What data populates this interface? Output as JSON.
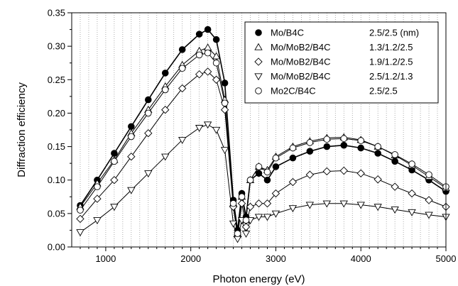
{
  "chart_data": {
    "type": "line",
    "title": "",
    "xlabel": "Photon energy (eV)",
    "ylabel": "Diffraction efficiency",
    "xlim": [
      600,
      5000
    ],
    "ylim": [
      0.0,
      0.35
    ],
    "x_ticks": [
      "1000",
      "2000",
      "3000",
      "4000",
      "5000"
    ],
    "y_ticks": [
      "0.00",
      "0.05",
      "0.10",
      "0.15",
      "0.20",
      "0.25",
      "0.30",
      "0.35"
    ],
    "grid": "vertical dotted at every 100 eV",
    "legend_position": "top-right",
    "series": [
      {
        "name": "Mo/B4C",
        "params": "2.5/2.5 (nm)",
        "marker": "filled-circle",
        "x": [
          700,
          900,
          1100,
          1300,
          1500,
          1700,
          1900,
          2100,
          2200,
          2300,
          2400,
          2500,
          2550,
          2600,
          2650,
          2700,
          2800,
          2900,
          3000,
          3200,
          3400,
          3600,
          3800,
          4000,
          4200,
          4400,
          4600,
          4800,
          5000
        ],
        "values": [
          0.062,
          0.1,
          0.14,
          0.18,
          0.22,
          0.26,
          0.295,
          0.318,
          0.325,
          0.31,
          0.245,
          0.07,
          0.025,
          0.08,
          0.045,
          0.1,
          0.11,
          0.1,
          0.12,
          0.133,
          0.143,
          0.15,
          0.152,
          0.148,
          0.14,
          0.128,
          0.115,
          0.1,
          0.083
        ]
      },
      {
        "name": "Mo/MoB2/B4C",
        "params": "1.3/1.2/2.5",
        "marker": "open-triangle-up",
        "x": [
          700,
          900,
          1100,
          1300,
          1500,
          1700,
          1900,
          2100,
          2200,
          2300,
          2400,
          2500,
          2550,
          2600,
          2650,
          2700,
          2800,
          2900,
          3000,
          3200,
          3400,
          3600,
          3800,
          4000,
          4200,
          4400,
          4600,
          4800,
          5000
        ],
        "values": [
          0.06,
          0.095,
          0.13,
          0.17,
          0.205,
          0.24,
          0.272,
          0.293,
          0.298,
          0.285,
          0.22,
          0.065,
          0.02,
          0.075,
          0.04,
          0.1,
          0.12,
          0.115,
          0.135,
          0.15,
          0.158,
          0.163,
          0.164,
          0.16,
          0.15,
          0.137,
          0.122,
          0.105,
          0.088
        ]
      },
      {
        "name": "Mo/MoB2/B4C",
        "params": "1.9/1.2/2.5",
        "marker": "open-diamond",
        "x": [
          700,
          900,
          1100,
          1300,
          1500,
          1700,
          1900,
          2100,
          2200,
          2300,
          2400,
          2500,
          2550,
          2600,
          2650,
          2700,
          2800,
          2900,
          3000,
          3200,
          3400,
          3600,
          3800,
          4000,
          4200,
          4400,
          4600,
          4800,
          5000
        ],
        "values": [
          0.042,
          0.072,
          0.1,
          0.135,
          0.17,
          0.205,
          0.237,
          0.258,
          0.262,
          0.25,
          0.205,
          0.06,
          0.015,
          0.065,
          0.03,
          0.06,
          0.065,
          0.065,
          0.08,
          0.097,
          0.108,
          0.113,
          0.114,
          0.11,
          0.101,
          0.09,
          0.08,
          0.07,
          0.06
        ]
      },
      {
        "name": "Mo/MoB2/B4C",
        "params": "2.5/1.2/1.3",
        "marker": "open-triangle-down",
        "x": [
          700,
          900,
          1100,
          1300,
          1500,
          1700,
          1900,
          2100,
          2200,
          2300,
          2400,
          2500,
          2550,
          2600,
          2650,
          2700,
          2800,
          2900,
          3000,
          3200,
          3400,
          3600,
          3800,
          4000,
          4200,
          4400,
          4600,
          4800,
          5000
        ],
        "values": [
          0.022,
          0.04,
          0.06,
          0.085,
          0.11,
          0.135,
          0.16,
          0.178,
          0.183,
          0.175,
          0.145,
          0.035,
          0.012,
          0.04,
          0.02,
          0.04,
          0.045,
          0.045,
          0.05,
          0.058,
          0.063,
          0.065,
          0.065,
          0.063,
          0.06,
          0.056,
          0.052,
          0.048,
          0.045
        ]
      },
      {
        "name": "Mo2C/B4C",
        "params": "2.5/2.5",
        "marker": "open-circle",
        "x": [
          700,
          900,
          1100,
          1300,
          1500,
          1700,
          1900,
          2100,
          2200,
          2300,
          2400,
          2500,
          2550,
          2600,
          2650,
          2700,
          2800,
          2900,
          3000,
          3200,
          3400,
          3600,
          3800,
          4000,
          4200,
          4400,
          4600,
          4800,
          5000
        ],
        "values": [
          0.055,
          0.09,
          0.128,
          0.165,
          0.2,
          0.235,
          0.267,
          0.287,
          0.29,
          0.275,
          0.215,
          0.065,
          0.02,
          0.075,
          0.04,
          0.1,
          0.12,
          0.112,
          0.133,
          0.148,
          0.156,
          0.161,
          0.162,
          0.159,
          0.15,
          0.138,
          0.124,
          0.108,
          0.09
        ]
      }
    ]
  }
}
